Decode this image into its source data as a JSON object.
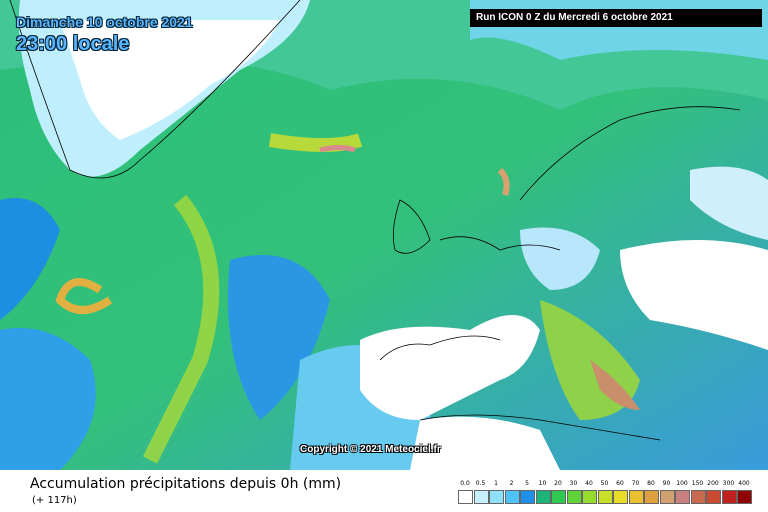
{
  "header": {
    "date": "Dimanche 10 octobre 2021",
    "time": "23:00 locale",
    "run": "Run ICON 0 Z du Mercredi 6 octobre 2021"
  },
  "copyright": "Copyright © 2021 Meteociel.fr",
  "footer": {
    "caption": "Accumulation précipitations depuis 0h (mm)",
    "lead": "(+ 117h)"
  },
  "legend": {
    "labels": [
      "0.0",
      "0.5",
      "1",
      "2",
      "5",
      "10",
      "20",
      "30",
      "40",
      "50",
      "60",
      "70",
      "80",
      "90",
      "100",
      "150",
      "200",
      "300",
      "400"
    ]
  }
}
